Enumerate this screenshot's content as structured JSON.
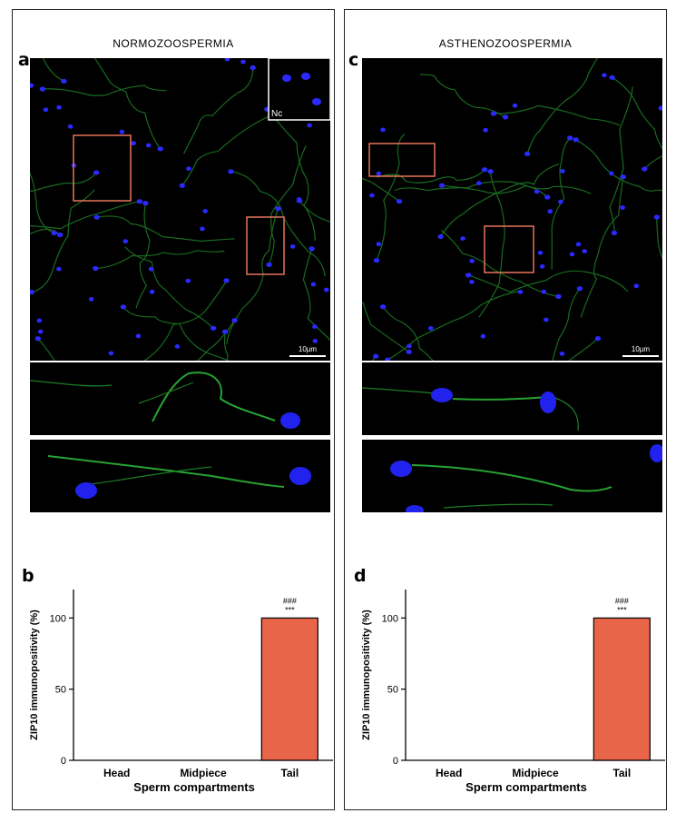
{
  "panels": [
    {
      "title": "NORMOZOOSPERMIA",
      "image_letter": "a",
      "chart_letter": "b",
      "scale_bar": "10µm",
      "inset_label": "Nc"
    },
    {
      "title": "ASTHENOZOOSPERMIA",
      "image_letter": "c",
      "chart_letter": "d",
      "scale_bar": "10µm",
      "inset_label": ""
    }
  ],
  "colors": {
    "bar_fill": "#e8654a",
    "roi_box": "#e8765a",
    "nucleus": "#2a2aff",
    "tail": "#1f8a2a"
  },
  "chart_data": [
    {
      "type": "bar",
      "title": "",
      "xlabel": "Sperm compartments",
      "ylabel": "ZIP10 immunopositivity (%)",
      "categories": [
        "Head",
        "Midpiece",
        "Tail"
      ],
      "values": [
        0,
        0,
        100
      ],
      "ylim": [
        0,
        120
      ],
      "yticks": [
        0,
        50,
        100
      ],
      "annotations": [
        {
          "category": "Tail",
          "lines": [
            "###",
            "***"
          ]
        }
      ],
      "grid": false,
      "legend": "none"
    },
    {
      "type": "bar",
      "title": "",
      "xlabel": "Sperm compartments",
      "ylabel": "ZIP10 immunopositivity (%)",
      "categories": [
        "Head",
        "Midpiece",
        "Tail"
      ],
      "values": [
        0,
        0,
        100
      ],
      "ylim": [
        0,
        120
      ],
      "yticks": [
        0,
        50,
        100
      ],
      "annotations": [
        {
          "category": "Tail",
          "lines": [
            "###",
            "***"
          ]
        }
      ],
      "grid": false,
      "legend": "none"
    }
  ]
}
